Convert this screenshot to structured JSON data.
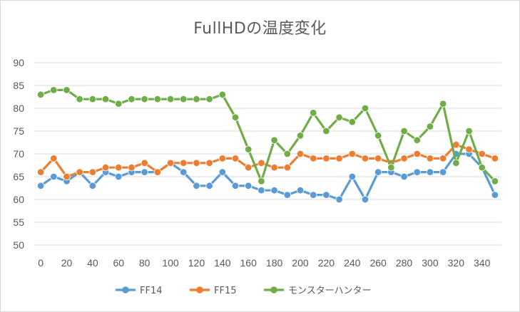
{
  "chart_data": {
    "type": "line",
    "title": "FullHDの温度変化",
    "xlabel": "",
    "ylabel": "",
    "x": [
      0,
      10,
      20,
      30,
      40,
      50,
      60,
      70,
      80,
      90,
      100,
      110,
      120,
      130,
      140,
      150,
      160,
      170,
      180,
      190,
      200,
      210,
      220,
      230,
      240,
      250,
      260,
      270,
      280,
      290,
      300,
      310,
      320,
      330,
      340,
      350
    ],
    "x_ticks": [
      0,
      20,
      40,
      60,
      80,
      100,
      120,
      140,
      160,
      180,
      200,
      220,
      240,
      260,
      280,
      300,
      320,
      340
    ],
    "y_ticks": [
      50,
      55,
      60,
      65,
      70,
      75,
      80,
      85,
      90
    ],
    "xlim": [
      -5,
      355
    ],
    "ylim": [
      50,
      90
    ],
    "grid": true,
    "legend_position": "bottom",
    "series": [
      {
        "name": "FF14",
        "color": "#5B9BD5",
        "values": [
          63,
          65,
          64,
          66,
          63,
          66,
          65,
          66,
          66,
          66,
          68,
          66,
          63,
          63,
          66,
          63,
          63,
          62,
          62,
          61,
          62,
          61,
          61,
          60,
          65,
          60,
          66,
          66,
          65,
          66,
          66,
          66,
          70,
          70,
          67,
          61
        ]
      },
      {
        "name": "FF15",
        "color": "#ED7D31",
        "values": [
          66,
          69,
          65,
          66,
          66,
          67,
          67,
          67,
          68,
          66,
          68,
          68,
          68,
          68,
          69,
          69,
          67,
          68,
          67,
          67,
          70,
          69,
          69,
          69,
          70,
          69,
          69,
          68,
          69,
          70,
          69,
          69,
          72,
          71,
          70,
          69
        ]
      },
      {
        "name": "モンスターハンター",
        "color": "#70AD47",
        "values": [
          83,
          84,
          84,
          82,
          82,
          82,
          81,
          82,
          82,
          82,
          82,
          82,
          82,
          82,
          83,
          78,
          71,
          64,
          73,
          70,
          74,
          79,
          75,
          78,
          77,
          80,
          74,
          67,
          75,
          73,
          76,
          81,
          68,
          75,
          67,
          64
        ]
      }
    ]
  }
}
